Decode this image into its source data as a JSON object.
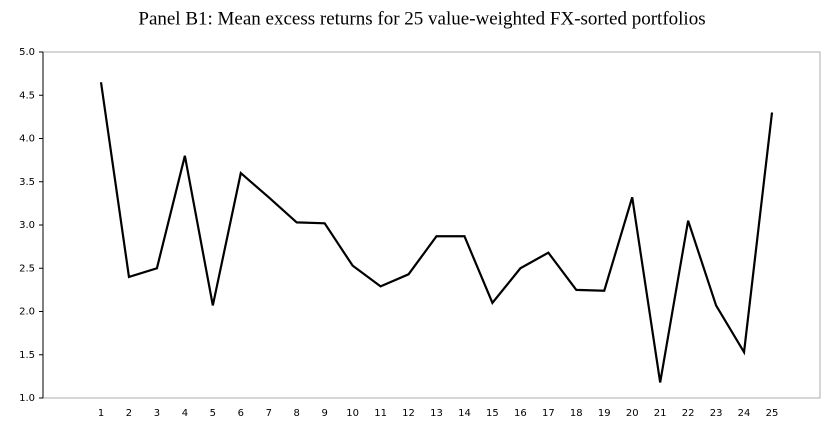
{
  "chart_data": {
    "type": "line",
    "title": "Panel B1: Mean excess returns for 25 value-weighted FX-sorted portfolios",
    "categories": [
      "1",
      "2",
      "3",
      "4",
      "5",
      "6",
      "7",
      "8",
      "9",
      "10",
      "11",
      "12",
      "13",
      "14",
      "15",
      "16",
      "17",
      "18",
      "19",
      "20",
      "21",
      "22",
      "23",
      "24",
      "25"
    ],
    "values": [
      4.65,
      2.4,
      2.5,
      3.8,
      2.07,
      3.6,
      3.32,
      3.03,
      3.02,
      2.53,
      2.29,
      2.43,
      2.87,
      2.87,
      2.1,
      2.5,
      2.68,
      2.25,
      2.24,
      3.32,
      1.18,
      3.05,
      2.07,
      1.53,
      4.3
    ],
    "color": "#000000",
    "ylim": [
      1,
      5
    ],
    "yticks": [
      {
        "value": 1,
        "label": "1.0"
      },
      {
        "value": 1.5,
        "label": "1.5"
      },
      {
        "value": 2,
        "label": "2.0"
      },
      {
        "value": 2.5,
        "label": "2.5"
      },
      {
        "value": 3,
        "label": "3.0"
      },
      {
        "value": 3.5,
        "label": "3.5"
      },
      {
        "value": 4,
        "label": "4.0"
      },
      {
        "value": 4.5,
        "label": "4.5"
      },
      {
        "value": 5,
        "label": "5.0"
      }
    ],
    "grid": false
  }
}
